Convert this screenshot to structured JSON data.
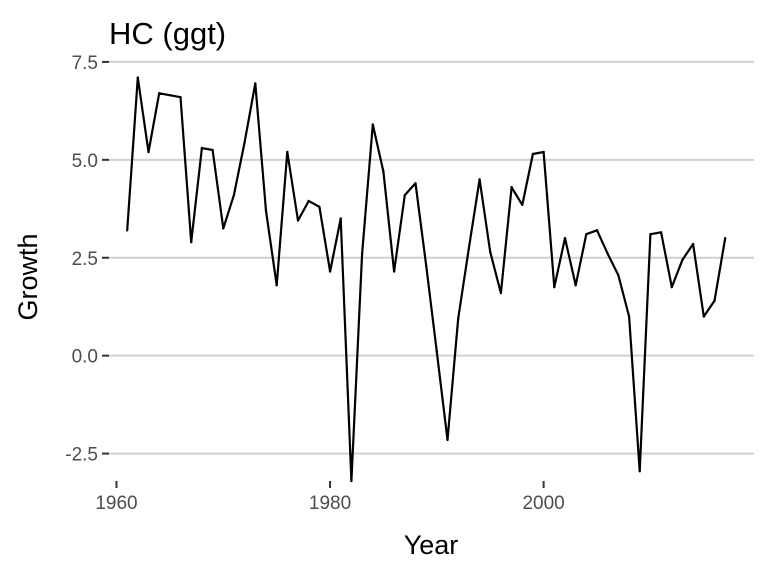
{
  "chart_data": {
    "type": "line",
    "title": "HC (ggt)",
    "xlabel": "Year",
    "ylabel": "Growth",
    "xlim": [
      1959.3,
      2019.7
    ],
    "ylim": [
      -3.2,
      7.6
    ],
    "x_ticks": [
      1960,
      1980,
      2000
    ],
    "x_tick_labels": [
      "1960",
      "1980",
      "2000"
    ],
    "y_ticks": [
      -2.5,
      0,
      2.5,
      5,
      7.5
    ],
    "y_tick_labels": [
      "-2.5",
      "0.0",
      "2.5",
      "5.0",
      "7.5"
    ],
    "grid": "horizontal",
    "legend": "none",
    "line_color": "#000000",
    "x": [
      1961,
      1962,
      1963,
      1964,
      1965,
      1966,
      1967,
      1968,
      1969,
      1970,
      1971,
      1972,
      1973,
      1974,
      1975,
      1976,
      1977,
      1978,
      1979,
      1980,
      1981,
      1982,
      1983,
      1984,
      1985,
      1986,
      1987,
      1988,
      1989,
      1990,
      1991,
      1992,
      1993,
      1994,
      1995,
      1996,
      1997,
      1998,
      1999,
      2000,
      2001,
      2002,
      2003,
      2004,
      2005,
      2006,
      2007,
      2008,
      2009,
      2010,
      2011,
      2012,
      2013,
      2014,
      2015,
      2016,
      2017
    ],
    "values": [
      3.2,
      7.1,
      5.2,
      6.7,
      6.65,
      6.6,
      2.9,
      5.3,
      5.25,
      3.25,
      4.1,
      5.45,
      6.95,
      3.7,
      1.8,
      5.2,
      3.45,
      3.95,
      3.8,
      2.15,
      3.5,
      -3.2,
      2.6,
      5.9,
      4.7,
      2.15,
      4.1,
      4.4,
      2.3,
      0.1,
      -2.15,
      0.95,
      2.75,
      4.5,
      2.65,
      1.6,
      4.3,
      3.85,
      5.15,
      5.2,
      1.75,
      3.0,
      1.8,
      3.1,
      3.2,
      2.6,
      2.05,
      1.0,
      -2.95,
      3.1,
      3.15,
      1.75,
      2.45,
      2.85,
      1.0,
      1.4,
      3.0
    ]
  }
}
